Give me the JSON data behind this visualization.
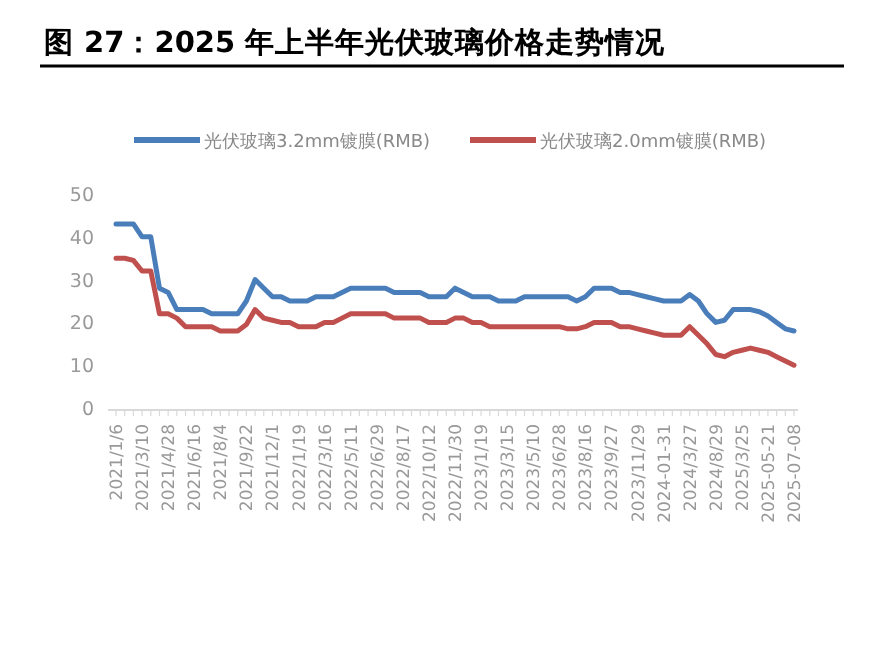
{
  "chart_data": {
    "type": "line",
    "title": "图 27：2025 年上半年光伏玻璃价格走势情况",
    "categories": [
      "2021/1/6",
      null,
      null,
      "2021/3/10",
      null,
      null,
      "2021/4/28",
      null,
      null,
      "2021/6/16",
      null,
      null,
      "2021/8/4",
      null,
      null,
      "2021/9/22",
      null,
      null,
      "2021/12/1",
      null,
      null,
      "2022/1/19",
      null,
      null,
      "2022/3/16",
      null,
      null,
      "2022/5/11",
      null,
      null,
      "2022/6/29",
      null,
      null,
      "2022/8/17",
      null,
      null,
      "2022/10/12",
      null,
      null,
      "2022/11/30",
      null,
      null,
      "2023/1/19",
      null,
      null,
      "2023/3/15",
      null,
      null,
      "2023/5/10",
      null,
      null,
      "2023/6/28",
      null,
      null,
      "2023/8/16",
      null,
      null,
      "2023/9/27",
      null,
      null,
      "2023/11/29",
      null,
      null,
      "2024-01-31",
      null,
      null,
      "2024/3/27",
      null,
      null,
      "2024/8/29",
      null,
      null,
      "2025/3/25",
      null,
      null,
      "2025-05-21",
      null,
      null,
      "2025-07-08"
    ],
    "series": [
      {
        "name": "光伏玻璃3.2mm镀膜(RMB)",
        "color": "#4a7ebb",
        "values": [
          43,
          43,
          43,
          40,
          40,
          28,
          27,
          23,
          23,
          23,
          23,
          22,
          22,
          22,
          22,
          25,
          30,
          28,
          26,
          26,
          25,
          25,
          25,
          26,
          26,
          26,
          27,
          28,
          28,
          28,
          28,
          28,
          27,
          27,
          27,
          27,
          26,
          26,
          26,
          28,
          27,
          26,
          26,
          26,
          25,
          25,
          25,
          26,
          26,
          26,
          26,
          26,
          26,
          25,
          26,
          28,
          28,
          28,
          27,
          27,
          26.5,
          26,
          25.5,
          25,
          25,
          25,
          26.5,
          25,
          22,
          20,
          20.5,
          23,
          23,
          23,
          22.5,
          21.5,
          20,
          18.5,
          18
        ]
      },
      {
        "name": "光伏玻璃2.0mm镀膜(RMB)",
        "color": "#c0504d",
        "values": [
          35,
          35,
          34.5,
          32,
          32,
          22,
          22,
          21,
          19,
          19,
          19,
          19,
          18,
          18,
          18,
          19.5,
          23,
          21,
          20.5,
          20,
          20,
          19,
          19,
          19,
          20,
          20,
          21,
          22,
          22,
          22,
          22,
          22,
          21,
          21,
          21,
          21,
          20,
          20,
          20,
          21,
          21,
          20,
          20,
          19,
          19,
          19,
          19,
          19,
          19,
          19,
          19,
          19,
          18.5,
          18.5,
          19,
          20,
          20,
          20,
          19,
          19,
          18.5,
          18,
          17.5,
          17,
          17,
          17,
          19,
          17,
          15,
          12.5,
          12,
          13,
          13.5,
          14,
          13.5,
          13,
          12,
          11,
          10
        ]
      }
    ],
    "ylim": [
      0,
      50
    ],
    "yticks": [
      0,
      10,
      20,
      30,
      40,
      50
    ],
    "grid": false,
    "legend": "top",
    "line_style": "solid"
  }
}
